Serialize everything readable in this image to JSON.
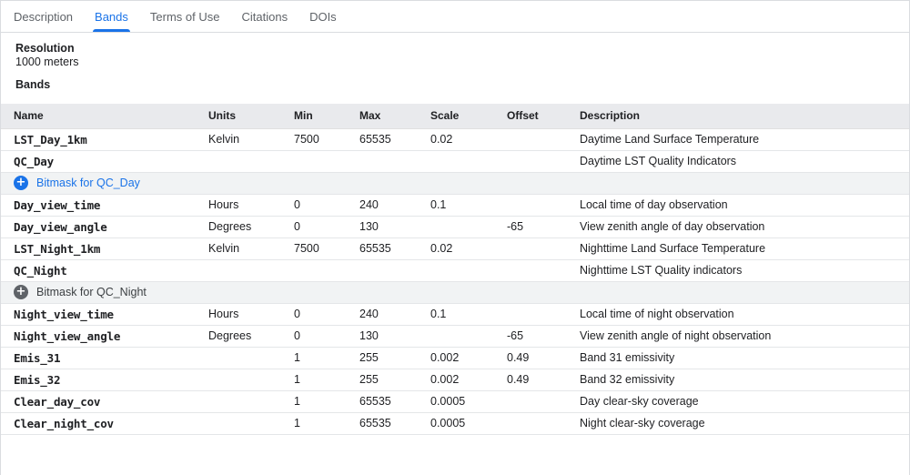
{
  "tabs": [
    {
      "label": "Description",
      "active": false
    },
    {
      "label": "Bands",
      "active": true
    },
    {
      "label": "Terms of Use",
      "active": false
    },
    {
      "label": "Citations",
      "active": false
    },
    {
      "label": "DOIs",
      "active": false
    }
  ],
  "info": {
    "resolution_label": "Resolution",
    "resolution_value": "1000 meters",
    "bands_heading": "Bands"
  },
  "icons": {
    "plus_glyph": "+"
  },
  "colors": {
    "accent_blue": "#1a73e8",
    "tab_inactive": "#5f6368",
    "table_header_bg": "#e9eaed",
    "bitmask_row_bg": "#f1f3f4",
    "bitmask_dark_icon": "#5f6368",
    "row_border": "#e4e6e8",
    "text_primary": "#202124"
  },
  "table": {
    "columns": [
      "Name",
      "Units",
      "Min",
      "Max",
      "Scale",
      "Offset",
      "Description"
    ],
    "rows": [
      {
        "type": "band",
        "name": "LST_Day_1km",
        "units": "Kelvin",
        "min": "7500",
        "max": "65535",
        "scale": "0.02",
        "offset": "",
        "description": "Daytime Land Surface Temperature"
      },
      {
        "type": "band",
        "name": "QC_Day",
        "units": "",
        "min": "",
        "max": "",
        "scale": "",
        "offset": "",
        "description": "Daytime LST Quality Indicators"
      },
      {
        "type": "bitmask",
        "variant": "blue",
        "label": "Bitmask for QC_Day"
      },
      {
        "type": "band",
        "name": "Day_view_time",
        "units": "Hours",
        "min": "0",
        "max": "240",
        "scale": "0.1",
        "offset": "",
        "description": "Local time of day observation"
      },
      {
        "type": "band",
        "name": "Day_view_angle",
        "units": "Degrees",
        "min": "0",
        "max": "130",
        "scale": "",
        "offset": "-65",
        "description": "View zenith angle of day observation"
      },
      {
        "type": "band",
        "name": "LST_Night_1km",
        "units": "Kelvin",
        "min": "7500",
        "max": "65535",
        "scale": "0.02",
        "offset": "",
        "description": "Nighttime Land Surface Temperature"
      },
      {
        "type": "band",
        "name": "QC_Night",
        "units": "",
        "min": "",
        "max": "",
        "scale": "",
        "offset": "",
        "description": "Nighttime LST Quality indicators"
      },
      {
        "type": "bitmask",
        "variant": "dark",
        "label": "Bitmask for QC_Night"
      },
      {
        "type": "band",
        "name": "Night_view_time",
        "units": "Hours",
        "min": "0",
        "max": "240",
        "scale": "0.1",
        "offset": "",
        "description": "Local time of night observation"
      },
      {
        "type": "band",
        "name": "Night_view_angle",
        "units": "Degrees",
        "min": "0",
        "max": "130",
        "scale": "",
        "offset": "-65",
        "description": "View zenith angle of night observation"
      },
      {
        "type": "band",
        "name": "Emis_31",
        "units": "",
        "min": "1",
        "max": "255",
        "scale": "0.002",
        "offset": "0.49",
        "description": "Band 31 emissivity"
      },
      {
        "type": "band",
        "name": "Emis_32",
        "units": "",
        "min": "1",
        "max": "255",
        "scale": "0.002",
        "offset": "0.49",
        "description": "Band 32 emissivity"
      },
      {
        "type": "band",
        "name": "Clear_day_cov",
        "units": "",
        "min": "1",
        "max": "65535",
        "scale": "0.0005",
        "offset": "",
        "description": "Day clear-sky coverage"
      },
      {
        "type": "band",
        "name": "Clear_night_cov",
        "units": "",
        "min": "1",
        "max": "65535",
        "scale": "0.0005",
        "offset": "",
        "description": "Night clear-sky coverage"
      }
    ]
  }
}
